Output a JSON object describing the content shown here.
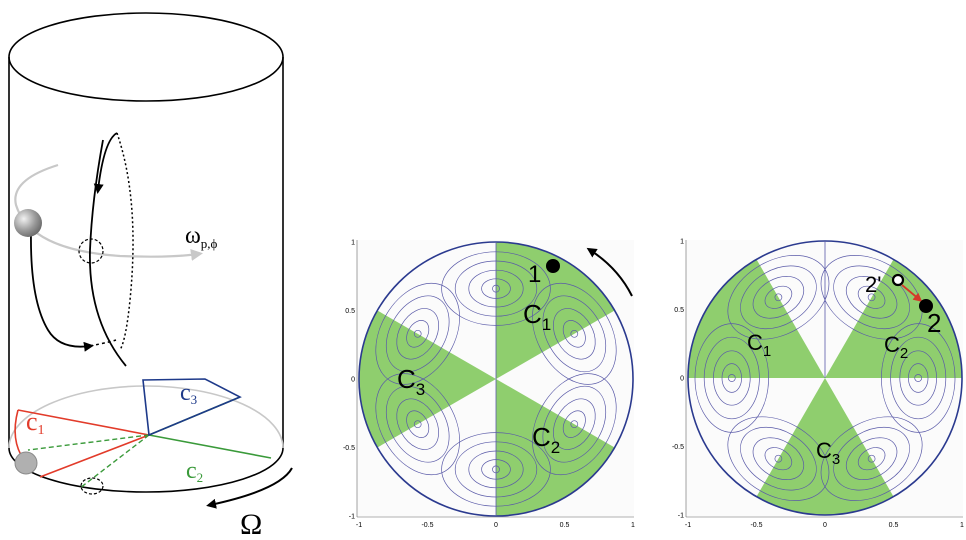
{
  "colors": {
    "green_sector": "#8fce6e",
    "streamline": "#5a5aa8",
    "boundary": "#2b3a8f",
    "c1_red": "#e23b2a",
    "c2_green": "#3a9a3a",
    "c3_blue": "#1e3a8a",
    "arrow_red": "#d43a2a",
    "gray_rotation": "#c8c8c8"
  },
  "cylinder": {
    "omega_label": "Ω",
    "omega_p_phi_label": "ω",
    "omega_p_phi_sub": "p,ϕ",
    "c1_label": "c",
    "c1_sub": "1",
    "c2_label": "c",
    "c2_sub": "2",
    "c3_label": "c",
    "c3_sub": "3"
  },
  "panel_a": {
    "c1_label": "C",
    "c1_sub": "1",
    "c2_label": "C",
    "c2_sub": "2",
    "c3_label": "C",
    "c3_sub": "3",
    "particle_label": "1",
    "x_ticks": [
      "-1",
      "-0.5",
      "0",
      "0.5",
      "1"
    ],
    "y_ticks": [
      "1",
      "0.5",
      "0",
      "-0.5",
      "-1"
    ]
  },
  "panel_b": {
    "c1_label": "C",
    "c1_sub": "1",
    "c2_label": "C",
    "c2_sub": "2",
    "c3_label": "C",
    "c3_sub": "3",
    "particle_label": "2",
    "particle_prev_label": "2'",
    "x_ticks": [
      "-1",
      "-0.5",
      "0",
      "0.5",
      "1"
    ],
    "y_ticks": [
      "1",
      "0.5",
      "0",
      "-0.5",
      "-1"
    ]
  }
}
